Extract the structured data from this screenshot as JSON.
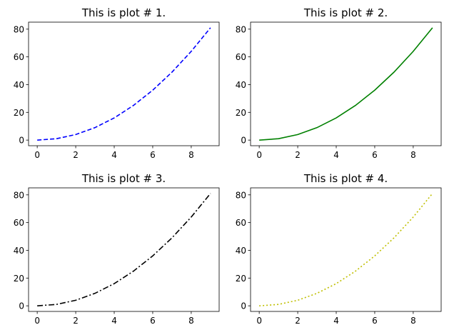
{
  "chart_data": [
    {
      "type": "line",
      "title": "This is plot # 1.",
      "xlabel": "",
      "ylabel": "",
      "x": [
        0,
        1,
        2,
        3,
        4,
        5,
        6,
        7,
        8,
        9
      ],
      "series": [
        {
          "values": [
            0,
            1,
            4,
            9,
            16,
            25,
            36,
            49,
            64,
            81
          ],
          "color": "#0000ff",
          "linestyle": "dashed"
        }
      ],
      "xlim": [
        -0.45,
        9.45
      ],
      "ylim": [
        -4.05,
        85.05
      ],
      "xticks": [
        0,
        2,
        4,
        6,
        8
      ],
      "yticks": [
        0,
        20,
        40,
        60,
        80
      ],
      "grid": false
    },
    {
      "type": "line",
      "title": "This is plot # 2.",
      "xlabel": "",
      "ylabel": "",
      "x": [
        0,
        1,
        2,
        3,
        4,
        5,
        6,
        7,
        8,
        9
      ],
      "series": [
        {
          "values": [
            0,
            1,
            4,
            9,
            16,
            25,
            36,
            49,
            64,
            81
          ],
          "color": "#008000",
          "linestyle": "solid"
        }
      ],
      "xlim": [
        -0.45,
        9.45
      ],
      "ylim": [
        -4.05,
        85.05
      ],
      "xticks": [
        0,
        2,
        4,
        6,
        8
      ],
      "yticks": [
        0,
        20,
        40,
        60,
        80
      ],
      "grid": false
    },
    {
      "type": "line",
      "title": "This is plot # 3.",
      "xlabel": "",
      "ylabel": "",
      "x": [
        0,
        1,
        2,
        3,
        4,
        5,
        6,
        7,
        8,
        9
      ],
      "series": [
        {
          "values": [
            0,
            1,
            4,
            9,
            16,
            25,
            36,
            49,
            64,
            81
          ],
          "color": "#000000",
          "linestyle": "dashdot"
        }
      ],
      "xlim": [
        -0.45,
        9.45
      ],
      "ylim": [
        -4.05,
        85.05
      ],
      "xticks": [
        0,
        2,
        4,
        6,
        8
      ],
      "yticks": [
        0,
        20,
        40,
        60,
        80
      ],
      "grid": false
    },
    {
      "type": "line",
      "title": "This is plot # 4.",
      "xlabel": "",
      "ylabel": "",
      "x": [
        0,
        1,
        2,
        3,
        4,
        5,
        6,
        7,
        8,
        9
      ],
      "series": [
        {
          "values": [
            0,
            1,
            4,
            9,
            16,
            25,
            36,
            49,
            64,
            81
          ],
          "color": "#bfbf00",
          "linestyle": "dotted"
        }
      ],
      "xlim": [
        -0.45,
        9.45
      ],
      "ylim": [
        -4.05,
        85.05
      ],
      "xticks": [
        0,
        2,
        4,
        6,
        8
      ],
      "yticks": [
        0,
        20,
        40,
        60,
        80
      ],
      "grid": false
    }
  ]
}
